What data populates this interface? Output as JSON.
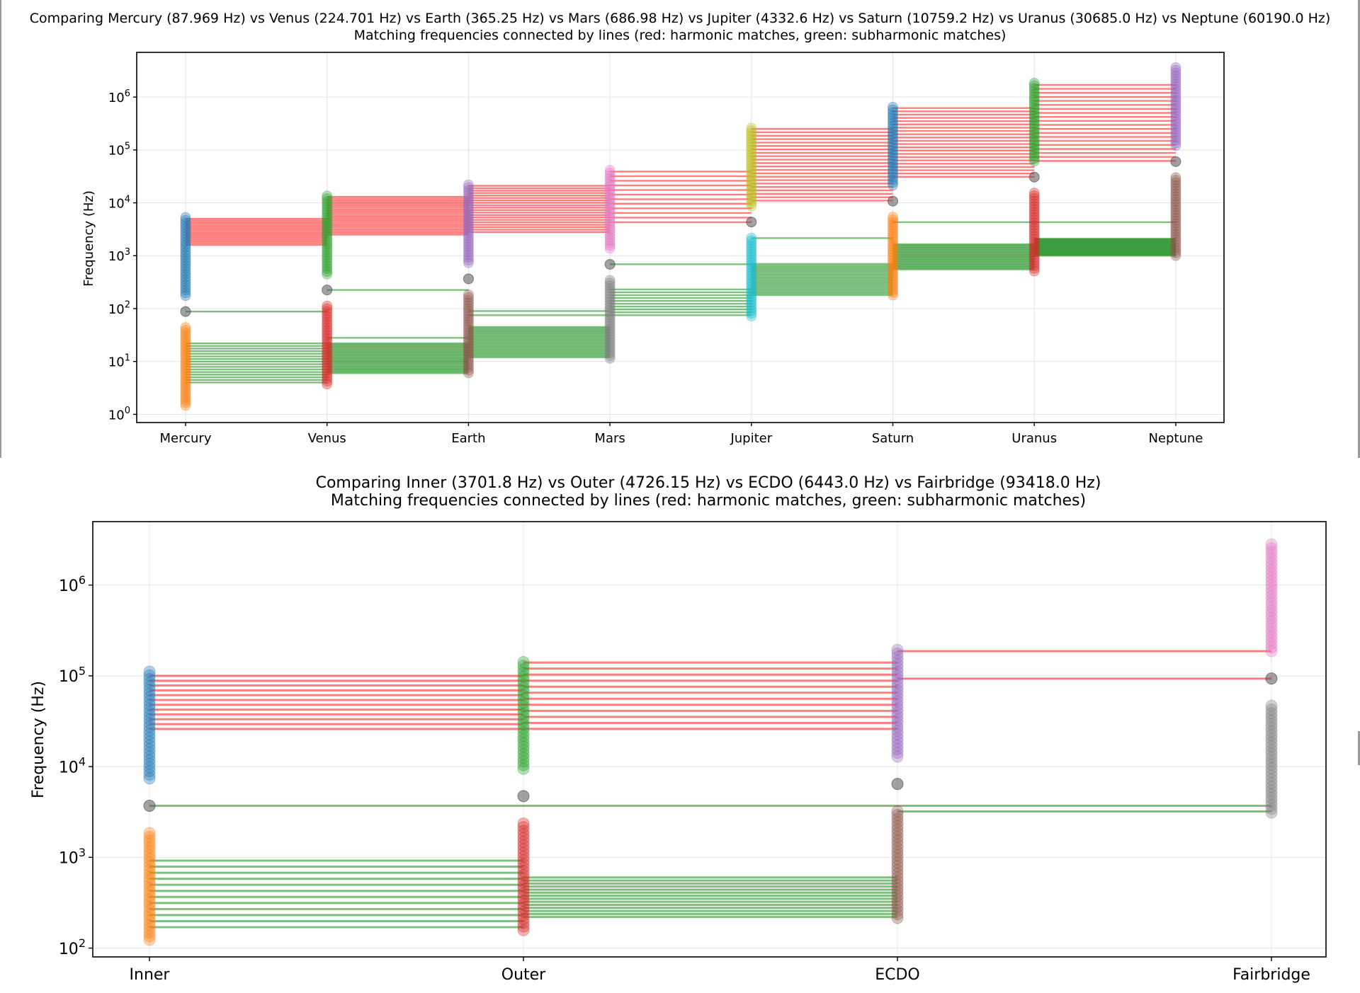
{
  "colors": {
    "harmonic": "#ff0000",
    "subharmonic": "#008000",
    "palette": [
      "#1f77b4",
      "#ff7f0e",
      "#2ca02c",
      "#d62728",
      "#9467bd",
      "#8c564b",
      "#e377c2",
      "#7f7f7f",
      "#bcbd22",
      "#17becf"
    ]
  },
  "chart_data": [
    {
      "type": "scatter",
      "title": "Comparing Mercury (87.969 Hz) vs Venus (224.701 Hz) vs Earth (365.25 Hz) vs Mars (686.98 Hz) vs Jupiter (4332.6 Hz) vs Saturn (10759.2 Hz) vs Uranus (30685.0 Hz) vs Neptune (60190.0 Hz)",
      "subtitle": "Matching frequencies connected by lines (red: harmonic matches, green: subharmonic matches)",
      "xlabel": "",
      "ylabel": "Frequency (Hz)",
      "yscale": "log",
      "ylim": [
        0.7,
        7000000
      ],
      "grid": true,
      "categories": [
        "Mercury",
        "Venus",
        "Earth",
        "Mars",
        "Jupiter",
        "Saturn",
        "Uranus",
        "Neptune"
      ],
      "y_ticks": [
        {
          "value": 1,
          "base": "10",
          "exp": "0"
        },
        {
          "value": 10,
          "base": "10",
          "exp": "1"
        },
        {
          "value": 100,
          "base": "10",
          "exp": "2"
        },
        {
          "value": 1000,
          "base": "10",
          "exp": "3"
        },
        {
          "value": 10000,
          "base": "10",
          "exp": "4"
        },
        {
          "value": 100000,
          "base": "10",
          "exp": "5"
        },
        {
          "value": 1000000,
          "base": "10",
          "exp": "6"
        }
      ],
      "series": [
        {
          "category": "Mercury",
          "base_frequency": 87.969,
          "harmonic_color": "#1f77b4",
          "harmonic_range": [
            175.9,
            5278
          ],
          "subharmonic_color": "#ff7f0e",
          "subharmonic_range": [
            1.47,
            43.98
          ],
          "harmonics": 30
        },
        {
          "category": "Venus",
          "base_frequency": 224.701,
          "harmonic_color": "#2ca02c",
          "harmonic_range": [
            449.4,
            13482
          ],
          "subharmonic_color": "#d62728",
          "subharmonic_range": [
            3.75,
            112.4
          ],
          "harmonics": 30
        },
        {
          "category": "Earth",
          "base_frequency": 365.25,
          "harmonic_color": "#9467bd",
          "harmonic_range": [
            730.5,
            21915
          ],
          "subharmonic_color": "#8c564b",
          "subharmonic_range": [
            6.09,
            182.6
          ],
          "harmonics": 30
        },
        {
          "category": "Mars",
          "base_frequency": 686.98,
          "harmonic_color": "#e377c2",
          "harmonic_range": [
            1374,
            41219
          ],
          "subharmonic_color": "#7f7f7f",
          "subharmonic_range": [
            11.45,
            343.5
          ],
          "harmonics": 30
        },
        {
          "category": "Jupiter",
          "base_frequency": 4332.6,
          "harmonic_color": "#bcbd22",
          "harmonic_range": [
            8665,
            259956
          ],
          "subharmonic_color": "#17becf",
          "subharmonic_range": [
            72.2,
            2166
          ],
          "harmonics": 30
        },
        {
          "category": "Saturn",
          "base_frequency": 10759.2,
          "harmonic_color": "#1f77b4",
          "harmonic_range": [
            21518,
            645552
          ],
          "subharmonic_color": "#ff7f0e",
          "subharmonic_range": [
            179.3,
            5380
          ],
          "harmonics": 30
        },
        {
          "category": "Uranus",
          "base_frequency": 30685.0,
          "harmonic_color": "#2ca02c",
          "harmonic_range": [
            61370,
            1841100
          ],
          "subharmonic_color": "#d62728",
          "subharmonic_range": [
            511.4,
            15342
          ],
          "harmonics": 30
        },
        {
          "category": "Neptune",
          "base_frequency": 60190.0,
          "harmonic_color": "#9467bd",
          "harmonic_range": [
            120380,
            3611400
          ],
          "subharmonic_color": "#8c564b",
          "subharmonic_range": [
            1003,
            30095
          ],
          "harmonics": 30
        }
      ],
      "match_lines": [
        {
          "pair": [
            "Mercury",
            "Venus"
          ],
          "harmonic_range": [
            1600,
            5000
          ],
          "harmonic_count": 16,
          "subharmonic_range": [
            4,
            22
          ],
          "subharmonic_count": 16,
          "extra_subharmonic": [
            88
          ]
        },
        {
          "pair": [
            "Venus",
            "Earth"
          ],
          "harmonic_range": [
            2500,
            13000
          ],
          "harmonic_count": 22,
          "subharmonic_range": [
            6,
            22
          ],
          "subharmonic_count": 24,
          "extra_subharmonic": [
            225,
            28
          ]
        },
        {
          "pair": [
            "Earth",
            "Mars"
          ],
          "harmonic_range": [
            2800,
            21000
          ],
          "harmonic_count": 20,
          "subharmonic_range": [
            12,
            45
          ],
          "subharmonic_count": 22,
          "extra_subharmonic": [
            90,
            75
          ]
        },
        {
          "pair": [
            "Mars",
            "Jupiter"
          ],
          "harmonic_range": [
            4300,
            39000
          ],
          "harmonic_count": 12,
          "subharmonic_range": [
            75,
            230
          ],
          "subharmonic_count": 10,
          "extra_subharmonic": [
            690
          ]
        },
        {
          "pair": [
            "Jupiter",
            "Saturn"
          ],
          "harmonic_range": [
            11000,
            250000
          ],
          "harmonic_count": 22,
          "subharmonic_range": [
            180,
            700
          ],
          "subharmonic_count": 20,
          "extra_subharmonic": [
            2150
          ]
        },
        {
          "pair": [
            "Saturn",
            "Uranus"
          ],
          "harmonic_range": [
            31000,
            620000
          ],
          "harmonic_count": 22,
          "subharmonic_range": [
            550,
            1650
          ],
          "subharmonic_count": 22,
          "extra_subharmonic": [
            4300
          ]
        },
        {
          "pair": [
            "Uranus",
            "Neptune"
          ],
          "harmonic_range": [
            62000,
            1700000
          ],
          "harmonic_count": 20,
          "subharmonic_range": [
            1000,
            2100
          ],
          "subharmonic_count": 22,
          "extra_subharmonic": [
            4300
          ]
        }
      ]
    },
    {
      "type": "scatter",
      "title": "Comparing Inner (3701.8 Hz) vs Outer (4726.15 Hz) vs ECDO (6443.0 Hz) vs Fairbridge (93418.0 Hz)",
      "subtitle": "Matching frequencies connected by lines (red: harmonic matches, green: subharmonic matches)",
      "xlabel": "",
      "ylabel": "Frequency (Hz)",
      "yscale": "log",
      "ylim": [
        80,
        5000000
      ],
      "grid": true,
      "categories": [
        "Inner",
        "Outer",
        "ECDO",
        "Fairbridge"
      ],
      "y_ticks": [
        {
          "value": 100,
          "base": "10",
          "exp": "2"
        },
        {
          "value": 1000,
          "base": "10",
          "exp": "3"
        },
        {
          "value": 10000,
          "base": "10",
          "exp": "4"
        },
        {
          "value": 100000,
          "base": "10",
          "exp": "5"
        },
        {
          "value": 1000000,
          "base": "10",
          "exp": "6"
        }
      ],
      "series": [
        {
          "category": "Inner",
          "base_frequency": 3701.8,
          "harmonic_color": "#1f77b4",
          "harmonic_range": [
            7404,
            111054
          ],
          "subharmonic_color": "#ff7f0e",
          "subharmonic_range": [
            123.4,
            1851
          ],
          "harmonics": 30
        },
        {
          "category": "Outer",
          "base_frequency": 4726.15,
          "harmonic_color": "#2ca02c",
          "harmonic_range": [
            9452,
            141785
          ],
          "subharmonic_color": "#d62728",
          "subharmonic_range": [
            157.5,
            2363
          ],
          "harmonics": 30
        },
        {
          "category": "ECDO",
          "base_frequency": 6443.0,
          "harmonic_color": "#9467bd",
          "harmonic_range": [
            12886,
            193290
          ],
          "subharmonic_color": "#8c564b",
          "subharmonic_range": [
            214.8,
            3222
          ],
          "harmonics": 30
        },
        {
          "category": "Fairbridge",
          "base_frequency": 93418.0,
          "harmonic_color": "#e377c2",
          "harmonic_range": [
            186836,
            2802540
          ],
          "subharmonic_color": "#7f7f7f",
          "subharmonic_range": [
            3114,
            46709
          ],
          "harmonics": 30
        }
      ],
      "match_lines": [
        {
          "pair": [
            "Inner",
            "Outer"
          ],
          "harmonic_range": [
            26000,
            100000
          ],
          "harmonic_count": 12,
          "subharmonic_range": [
            170,
            920
          ],
          "subharmonic_count": 12,
          "extra_subharmonic": [
            3700
          ]
        },
        {
          "pair": [
            "Outer",
            "ECDO"
          ],
          "harmonic_range": [
            26000,
            140000
          ],
          "harmonic_count": 12,
          "subharmonic_range": [
            220,
            600
          ],
          "subharmonic_count": 14,
          "extra_subharmonic": [
            3700
          ]
        },
        {
          "pair": [
            "ECDO",
            "Fairbridge"
          ],
          "harmonic_range": [
            93000,
            187000
          ],
          "harmonic_count": 2,
          "subharmonic_range": [
            3200,
            3700
          ],
          "subharmonic_count": 2,
          "extra_subharmonic": []
        }
      ]
    }
  ]
}
